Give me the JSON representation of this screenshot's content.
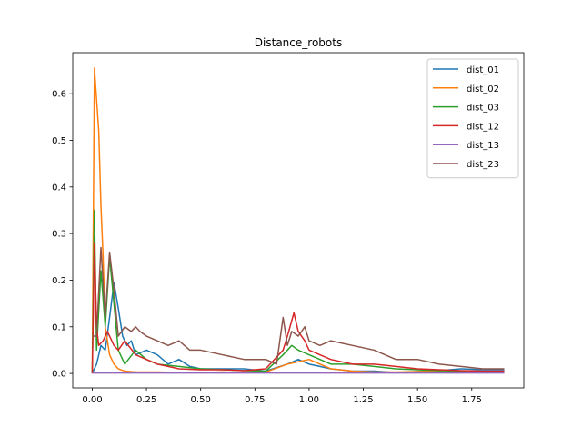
{
  "chart_data": {
    "type": "line",
    "title": "Distance_robots",
    "xlabel": "",
    "ylabel": "",
    "xlim": [
      -0.09,
      1.99
    ],
    "ylim": [
      -0.031,
      0.688
    ],
    "xticks": [
      0.0,
      0.25,
      0.5,
      0.75,
      1.0,
      1.25,
      1.5,
      1.75
    ],
    "xtick_labels": [
      "0.00",
      "0.25",
      "0.50",
      "0.75",
      "1.00",
      "1.25",
      "1.50",
      "1.75"
    ],
    "yticks": [
      0.0,
      0.1,
      0.2,
      0.3,
      0.4,
      0.5,
      0.6
    ],
    "ytick_labels": [
      "0.0",
      "0.1",
      "0.2",
      "0.3",
      "0.4",
      "0.5",
      "0.6"
    ],
    "legend_position": "top-right",
    "grid": false,
    "series": [
      {
        "name": "dist_01",
        "color": "#1f77b4",
        "x": [
          0.0,
          0.02,
          0.04,
          0.06,
          0.08,
          0.1,
          0.12,
          0.14,
          0.16,
          0.18,
          0.2,
          0.25,
          0.3,
          0.35,
          0.4,
          0.45,
          0.5,
          0.6,
          0.7,
          0.8,
          0.9,
          0.95,
          1.0,
          1.05,
          1.1,
          1.2,
          1.3,
          1.4,
          1.5,
          1.6,
          1.7,
          1.8,
          1.9
        ],
        "y": [
          0.0,
          0.02,
          0.06,
          0.05,
          0.12,
          0.195,
          0.14,
          0.08,
          0.06,
          0.07,
          0.04,
          0.05,
          0.04,
          0.02,
          0.03,
          0.015,
          0.01,
          0.01,
          0.01,
          0.005,
          0.02,
          0.03,
          0.02,
          0.015,
          0.01,
          0.005,
          0.005,
          0.002,
          0.004,
          0.006,
          0.01,
          0.008,
          0.008
        ]
      },
      {
        "name": "dist_02",
        "color": "#ff7f0e",
        "x": [
          0.0,
          0.01,
          0.03,
          0.04,
          0.05,
          0.06,
          0.08,
          0.1,
          0.12,
          0.15,
          0.2,
          0.3,
          0.4,
          0.5,
          0.6,
          0.7,
          0.8,
          0.9,
          1.0,
          1.1,
          1.2,
          1.3,
          1.4,
          1.5,
          1.6,
          1.7,
          1.8,
          1.9
        ],
        "y": [
          0.0,
          0.655,
          0.52,
          0.36,
          0.25,
          0.1,
          0.04,
          0.02,
          0.01,
          0.005,
          0.003,
          0.003,
          0.002,
          0.002,
          0.003,
          0.002,
          0.003,
          0.02,
          0.03,
          0.01,
          0.005,
          0.003,
          0.003,
          0.004,
          0.005,
          0.004,
          0.004,
          0.003
        ]
      },
      {
        "name": "dist_03",
        "color": "#2ca02c",
        "x": [
          0.0,
          0.01,
          0.02,
          0.04,
          0.06,
          0.08,
          0.1,
          0.12,
          0.15,
          0.2,
          0.25,
          0.3,
          0.4,
          0.5,
          0.6,
          0.7,
          0.8,
          0.88,
          0.92,
          0.95,
          1.0,
          1.05,
          1.1,
          1.2,
          1.3,
          1.4,
          1.5,
          1.6,
          1.7,
          1.8,
          1.9
        ],
        "y": [
          0.0,
          0.35,
          0.05,
          0.22,
          0.1,
          0.25,
          0.15,
          0.05,
          0.02,
          0.05,
          0.03,
          0.02,
          0.015,
          0.01,
          0.008,
          0.006,
          0.005,
          0.04,
          0.06,
          0.05,
          0.04,
          0.03,
          0.02,
          0.02,
          0.015,
          0.01,
          0.008,
          0.006,
          0.005,
          0.004,
          0.003
        ]
      },
      {
        "name": "dist_12",
        "color": "#d62728",
        "x": [
          0.0,
          0.01,
          0.02,
          0.03,
          0.05,
          0.07,
          0.1,
          0.12,
          0.15,
          0.2,
          0.25,
          0.3,
          0.35,
          0.4,
          0.5,
          0.6,
          0.7,
          0.8,
          0.88,
          0.9,
          0.93,
          0.95,
          0.98,
          1.0,
          1.05,
          1.1,
          1.2,
          1.3,
          1.4,
          1.5,
          1.6,
          1.7,
          1.8,
          1.9
        ],
        "y": [
          0.0,
          0.28,
          0.1,
          0.06,
          0.07,
          0.09,
          0.06,
          0.05,
          0.07,
          0.04,
          0.03,
          0.02,
          0.015,
          0.01,
          0.008,
          0.008,
          0.006,
          0.01,
          0.05,
          0.08,
          0.13,
          0.09,
          0.07,
          0.05,
          0.04,
          0.03,
          0.02,
          0.02,
          0.015,
          0.01,
          0.008,
          0.006,
          0.005,
          0.005
        ]
      },
      {
        "name": "dist_13",
        "color": "#9467bd",
        "x": [
          0.0,
          0.2,
          0.4,
          0.6,
          0.8,
          1.0,
          1.2,
          1.4,
          1.6,
          1.8,
          1.9
        ],
        "y": [
          0.001,
          0.001,
          0.001,
          0.001,
          0.001,
          0.001,
          0.001,
          0.001,
          0.001,
          0.001,
          0.001
        ]
      },
      {
        "name": "dist_23",
        "color": "#8c564b",
        "x": [
          0.0,
          0.02,
          0.04,
          0.06,
          0.08,
          0.1,
          0.12,
          0.15,
          0.18,
          0.2,
          0.22,
          0.25,
          0.3,
          0.35,
          0.4,
          0.45,
          0.5,
          0.6,
          0.7,
          0.8,
          0.85,
          0.88,
          0.9,
          0.92,
          0.95,
          0.98,
          1.0,
          1.05,
          1.1,
          1.2,
          1.3,
          1.4,
          1.5,
          1.6,
          1.7,
          1.8,
          1.9
        ],
        "y": [
          0.08,
          0.08,
          0.27,
          0.12,
          0.26,
          0.18,
          0.08,
          0.1,
          0.09,
          0.1,
          0.09,
          0.08,
          0.07,
          0.06,
          0.07,
          0.05,
          0.05,
          0.04,
          0.03,
          0.03,
          0.02,
          0.12,
          0.06,
          0.09,
          0.08,
          0.1,
          0.07,
          0.06,
          0.07,
          0.06,
          0.05,
          0.03,
          0.03,
          0.02,
          0.015,
          0.01,
          0.01
        ]
      }
    ]
  }
}
